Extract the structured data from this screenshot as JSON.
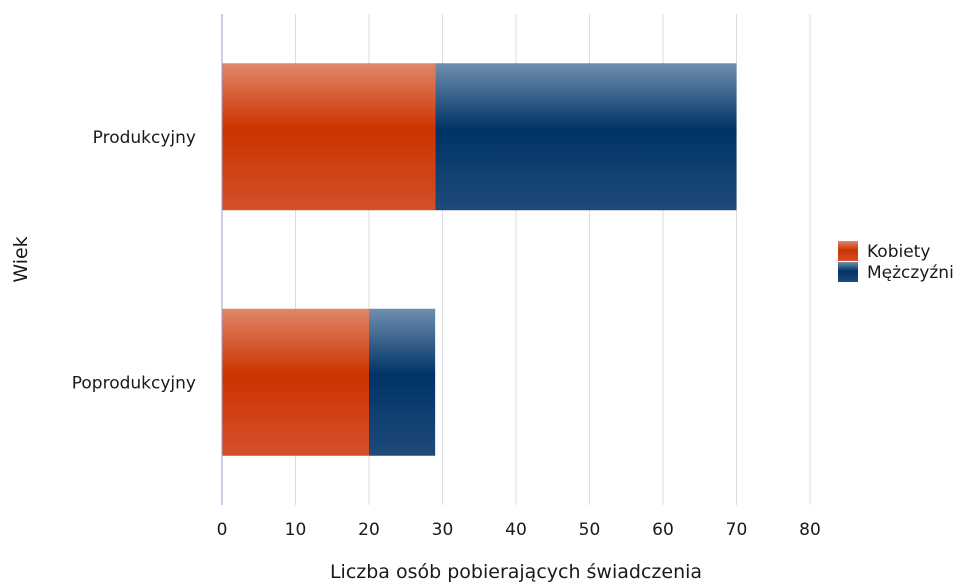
{
  "chart_data": {
    "type": "bar",
    "orientation": "horizontal",
    "stacked": true,
    "categories": [
      "Produkcyjny",
      "Poprodukcyjny"
    ],
    "series": [
      {
        "name": "Kobiety",
        "values": [
          29,
          20
        ],
        "color": "#cc3300"
      },
      {
        "name": "Mężczyźni",
        "values": [
          41,
          9
        ],
        "color": "#003366"
      }
    ],
    "xlabel": "Liczba osób pobierających świadczenia",
    "ylabel": "Wiek",
    "xlim": [
      0,
      80
    ],
    "xticks": [
      0,
      10,
      20,
      30,
      40,
      50,
      60,
      70,
      80
    ],
    "grid": true,
    "legend_position": "right"
  }
}
